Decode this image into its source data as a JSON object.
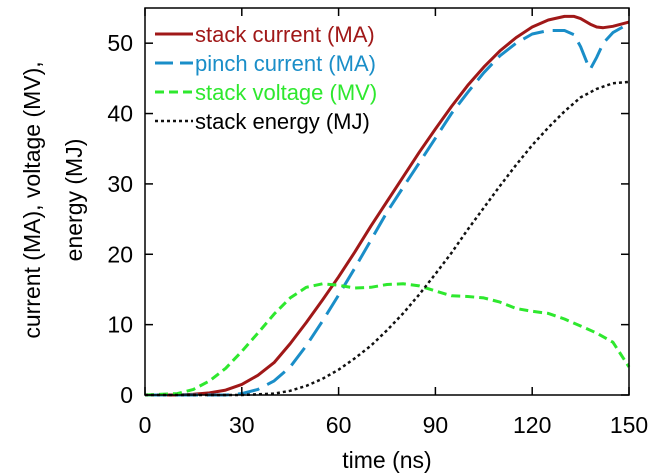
{
  "chart_data": {
    "type": "line",
    "xlabel": "time (ns)",
    "ylabel_lines": [
      "current (MA), voltage (MV),",
      "energy (MJ)"
    ],
    "xlim": [
      0,
      150
    ],
    "ylim": [
      0,
      55
    ],
    "xticks": [
      0,
      30,
      60,
      90,
      120,
      150
    ],
    "yticks": [
      0,
      10,
      20,
      30,
      40,
      50
    ],
    "grid": false,
    "legend_position": "top-left",
    "series": [
      {
        "name": "stack current (MA)",
        "color": "#a01818",
        "style": "solid",
        "x": [
          0,
          10,
          15,
          20,
          25,
          30,
          35,
          40,
          45,
          50,
          55,
          60,
          65,
          70,
          75,
          80,
          85,
          90,
          95,
          100,
          105,
          110,
          115,
          120,
          125,
          130,
          133,
          135,
          138,
          140,
          142,
          145,
          150
        ],
        "y": [
          0,
          0,
          0.1,
          0.3,
          0.7,
          1.5,
          2.8,
          4.6,
          7.3,
          10.3,
          13.5,
          16.8,
          20.3,
          24,
          27.5,
          31,
          34.5,
          37.8,
          41,
          44,
          46.6,
          48.9,
          50.8,
          52.3,
          53.3,
          53.8,
          53.8,
          53.5,
          52.7,
          52.3,
          52.2,
          52.4,
          53
        ]
      },
      {
        "name": "pinch current (MA)",
        "color": "#1a8ec8",
        "style": "dashed",
        "x": [
          0,
          25,
          30,
          35,
          40,
          45,
          50,
          55,
          60,
          65,
          70,
          75,
          80,
          85,
          90,
          95,
          100,
          105,
          110,
          115,
          120,
          125,
          130,
          133,
          135,
          137,
          138,
          140,
          142,
          145,
          150
        ],
        "y": [
          0,
          0,
          0.2,
          0.8,
          2,
          4,
          7,
          10.5,
          14.2,
          18,
          22,
          26,
          29.5,
          33,
          36.5,
          40,
          43,
          45.8,
          48.2,
          50,
          51.3,
          51.8,
          51.8,
          51.2,
          49.5,
          47.2,
          46.3,
          48,
          50,
          51.5,
          52.8
        ]
      },
      {
        "name": "stack voltage (MV)",
        "color": "#2ee82e",
        "style": "dashed",
        "x": [
          0,
          10,
          15,
          20,
          25,
          30,
          35,
          40,
          45,
          50,
          55,
          60,
          65,
          70,
          75,
          80,
          85,
          90,
          95,
          100,
          105,
          110,
          115,
          120,
          125,
          130,
          135,
          140,
          145,
          150
        ],
        "y": [
          0,
          0.2,
          0.8,
          2,
          3.8,
          6.2,
          8.8,
          11.5,
          13.8,
          15.3,
          15.8,
          15.6,
          15.2,
          15.3,
          15.7,
          15.8,
          15.5,
          14.8,
          14.1,
          14,
          13.8,
          13.2,
          12.3,
          11.9,
          11.6,
          10.8,
          9.8,
          8.8,
          7.5,
          4
        ]
      },
      {
        "name": "stack energy (MJ)",
        "color": "#111111",
        "style": "dotted",
        "x": [
          0,
          30,
          40,
          45,
          50,
          55,
          60,
          65,
          70,
          75,
          80,
          85,
          90,
          95,
          100,
          105,
          110,
          115,
          120,
          125,
          130,
          135,
          140,
          145,
          150
        ],
        "y": [
          0,
          0,
          0.2,
          0.6,
          1.3,
          2.3,
          3.6,
          5.2,
          7,
          9.2,
          11.6,
          14.3,
          17.2,
          20.2,
          23.5,
          26.6,
          29.7,
          32.7,
          35.5,
          38,
          40.3,
          42.3,
          43.5,
          44.3,
          44.5
        ]
      }
    ]
  }
}
